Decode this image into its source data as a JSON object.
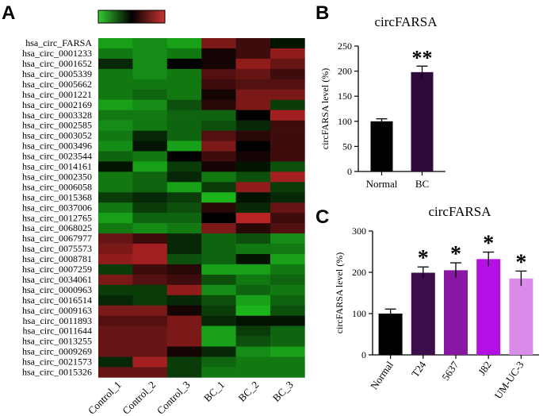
{
  "figure": {
    "panels": {
      "a": "A",
      "b": "B",
      "c": "C"
    }
  },
  "chart_data": [
    {
      "type": "heatmap",
      "panel": "A",
      "legend": "color scale bar: green (low) – black – red (high)",
      "columns": [
        "Control_1",
        "Control_2",
        "Control_3",
        "BC_1",
        "BC_2",
        "BC_3"
      ],
      "rows": [
        "hsa_circ_FARSA",
        "hsa_circ_0001233",
        "hsa_circ_0001652",
        "hsa_circ_0005339",
        "hsa_circ_0005662",
        "hsa_circ_0001221",
        "hsa_circ_0002169",
        "hsa_circ_0003328",
        "hsa_circ_0002585",
        "hsa_circ_0003052",
        "hsa_circ_0003496",
        "hsa_circ_0023544",
        "hsa_circ_0014161",
        "hsa_circ_0002350",
        "hsa_circ_0006058",
        "hsa_circ_0015368",
        "hsa_circ_0037006",
        "hsa_circ_0012765",
        "hsa_circ_0068025",
        "hsa_circ_0067977",
        "hsa_circ_0075573",
        "hsa_circ_0008781",
        "hsa_circ_0007259",
        "hsa_circ_0034061",
        "hsa_circ_0000963",
        "hsa_circ_0016514",
        "hsa_circ_0009163",
        "hsa_circ_0011893",
        "hsa_circ_0011644",
        "hsa_circ_0013255",
        "hsa_circ_0009269",
        "hsa_circ_0021573",
        "hsa_circ_0015326"
      ],
      "values": [
        [
          -0.8,
          -0.7,
          -0.8,
          0.6,
          0.3,
          -0.1
        ],
        [
          -0.6,
          -0.7,
          -0.6,
          0.1,
          0.3,
          0.7
        ],
        [
          -0.2,
          -0.7,
          0,
          0.1,
          0.7,
          0.5
        ],
        [
          -0.6,
          -0.7,
          -0.6,
          0.4,
          0.5,
          0.3
        ],
        [
          -0.6,
          -0.6,
          -0.6,
          0.3,
          0.4,
          0.4
        ],
        [
          -0.6,
          -0.5,
          -0.6,
          0.1,
          0.6,
          0.6
        ],
        [
          -0.8,
          -0.7,
          -0.4,
          0.2,
          0.6,
          -0.3
        ],
        [
          -0.6,
          -0.6,
          -0.5,
          -0.5,
          0,
          0.8
        ],
        [
          -0.7,
          -0.6,
          -0.5,
          -0.4,
          -0.2,
          0.3
        ],
        [
          -0.6,
          -0.2,
          -0.5,
          0.4,
          0.2,
          0.3
        ],
        [
          -0.7,
          -0.1,
          -0.8,
          0.6,
          0,
          0.3
        ],
        [
          -0.5,
          -0.6,
          0,
          0.3,
          0.1,
          0.3
        ],
        [
          -0.1,
          -0.8,
          -0.3,
          0.1,
          -0.1,
          -0.4
        ],
        [
          -0.6,
          -0.5,
          -0.2,
          -0.6,
          -0.4,
          0.8
        ],
        [
          -0.6,
          -0.5,
          -0.8,
          -0.3,
          0.7,
          -0.3
        ],
        [
          -0.3,
          -0.2,
          -0.3,
          -0.9,
          -0.1,
          -0.2
        ],
        [
          -0.6,
          -0.3,
          -0.4,
          0.2,
          -0.2,
          0.5
        ],
        [
          -0.8,
          -0.5,
          -0.5,
          0,
          0.9,
          0.3
        ],
        [
          -0.6,
          -0.7,
          -0.6,
          0.6,
          0.2,
          0.4
        ],
        [
          0.5,
          0.3,
          -0.2,
          -0.5,
          -0.4,
          -0.7
        ],
        [
          0.6,
          0.8,
          -0.2,
          -0.5,
          -0.6,
          -0.6
        ],
        [
          0.7,
          0.8,
          -0.4,
          -0.5,
          -0.1,
          -0.8
        ],
        [
          -0.3,
          0.3,
          0.2,
          -0.8,
          -0.8,
          -0.6
        ],
        [
          0.6,
          0.4,
          0.3,
          -0.4,
          -0.6,
          -0.5
        ],
        [
          -0.3,
          -0.3,
          0.7,
          -0.7,
          -0.5,
          -0.6
        ],
        [
          -0.2,
          -0.3,
          -0.2,
          -0.4,
          -0.8,
          -0.5
        ],
        [
          0.6,
          0.6,
          0.1,
          -0.3,
          -0.9,
          -0.4
        ],
        [
          0.4,
          0.4,
          0.6,
          -0.2,
          -0.1,
          -0.1
        ],
        [
          0.5,
          0.5,
          0.6,
          -0.8,
          -0.3,
          -0.5
        ],
        [
          0.5,
          0.5,
          0.6,
          -0.8,
          -0.4,
          -0.5
        ],
        [
          0.5,
          0.5,
          0.1,
          -0.2,
          -0.7,
          -0.8
        ],
        [
          -0.2,
          0.8,
          -0.3,
          -0.5,
          -0.6,
          -0.6
        ],
        [
          0.5,
          0.5,
          -0.3,
          -0.6,
          -0.6,
          -0.6
        ]
      ]
    },
    {
      "type": "bar",
      "panel": "B",
      "title": "circFARSA",
      "xlabel": "",
      "ylabel": "circFARSA level (%)",
      "ylim": [
        0,
        250
      ],
      "yticks": [
        0,
        50,
        100,
        150,
        200,
        250
      ],
      "categories": [
        "Normal",
        "BC"
      ],
      "values": [
        100,
        198
      ],
      "errors": [
        5,
        12
      ],
      "colors": [
        "#000000",
        "#2e0a3c"
      ],
      "significance": [
        "",
        "**"
      ]
    },
    {
      "type": "bar",
      "panel": "C",
      "title": "circFARSA",
      "xlabel": "",
      "ylabel": "circFARSA level (%)",
      "ylim": [
        0,
        300
      ],
      "yticks": [
        0,
        100,
        200,
        300
      ],
      "categories": [
        "Normal",
        "T24",
        "5637",
        "J82",
        "UM-UC-3"
      ],
      "values": [
        100,
        199,
        205,
        232,
        185
      ],
      "errors": [
        11,
        14,
        18,
        17,
        18
      ],
      "colors": [
        "#000000",
        "#3d0c4b",
        "#8818a4",
        "#b40fe3",
        "#d88be7"
      ],
      "significance": [
        "",
        "*",
        "*",
        "*",
        "*"
      ]
    }
  ]
}
